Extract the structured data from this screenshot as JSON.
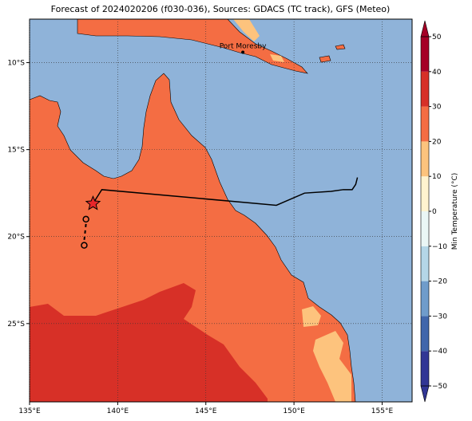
{
  "title": "Forecast of 2024020206 (f030-036), Sources: GDACS (TC track), GFS (Meteo)",
  "map": {
    "xlim": [
      135,
      156.7
    ],
    "ylim": [
      -29.5,
      -7.5
    ],
    "xticks": [
      {
        "value": 135,
        "label": "135°E"
      },
      {
        "value": 140,
        "label": "140°E"
      },
      {
        "value": 145,
        "label": "145°E"
      },
      {
        "value": 150,
        "label": "150°E"
      },
      {
        "value": 155,
        "label": "155°E"
      }
    ],
    "yticks": [
      {
        "value": -10,
        "label": "10°S"
      },
      {
        "value": -15,
        "label": "15°S"
      },
      {
        "value": -20,
        "label": "20°S"
      },
      {
        "value": -25,
        "label": "25°S"
      }
    ],
    "grid": true
  },
  "places": [
    {
      "name": "Port Moresby",
      "lon": 147.1,
      "lat": -9.4
    }
  ],
  "track": {
    "lon": [
      138.6,
      139.1,
      149.0,
      150.6,
      152.1,
      152.8,
      153.3,
      153.5,
      153.6
    ],
    "lat": [
      -18.1,
      -17.3,
      -18.2,
      -17.5,
      -17.4,
      -17.3,
      -17.3,
      -17.0,
      -16.6
    ],
    "color": "#000000"
  },
  "current_position": {
    "lon": 138.6,
    "lat": -18.1,
    "color": "#e8262a"
  },
  "past_positions": {
    "lon": [
      138.2,
      138.1
    ],
    "lat": [
      -19.0,
      -20.5
    ]
  },
  "colorbar": {
    "label": "Min Temperature (°C)",
    "levels": [
      {
        "value": -50,
        "label": "−50"
      },
      {
        "value": -40,
        "label": "−40"
      },
      {
        "value": -30,
        "label": "−30"
      },
      {
        "value": -20,
        "label": "−20"
      },
      {
        "value": -10,
        "label": "−10"
      },
      0,
      10,
      20,
      30,
      40,
      50
    ],
    "colors": [
      "#313695",
      "#4066ab",
      "#6f9ccb",
      "#b4d6e7",
      "#eaf6f5",
      "#fff3cf",
      "#fdc37d",
      "#f46d43",
      "#d73027",
      "#a50026"
    ]
  }
}
